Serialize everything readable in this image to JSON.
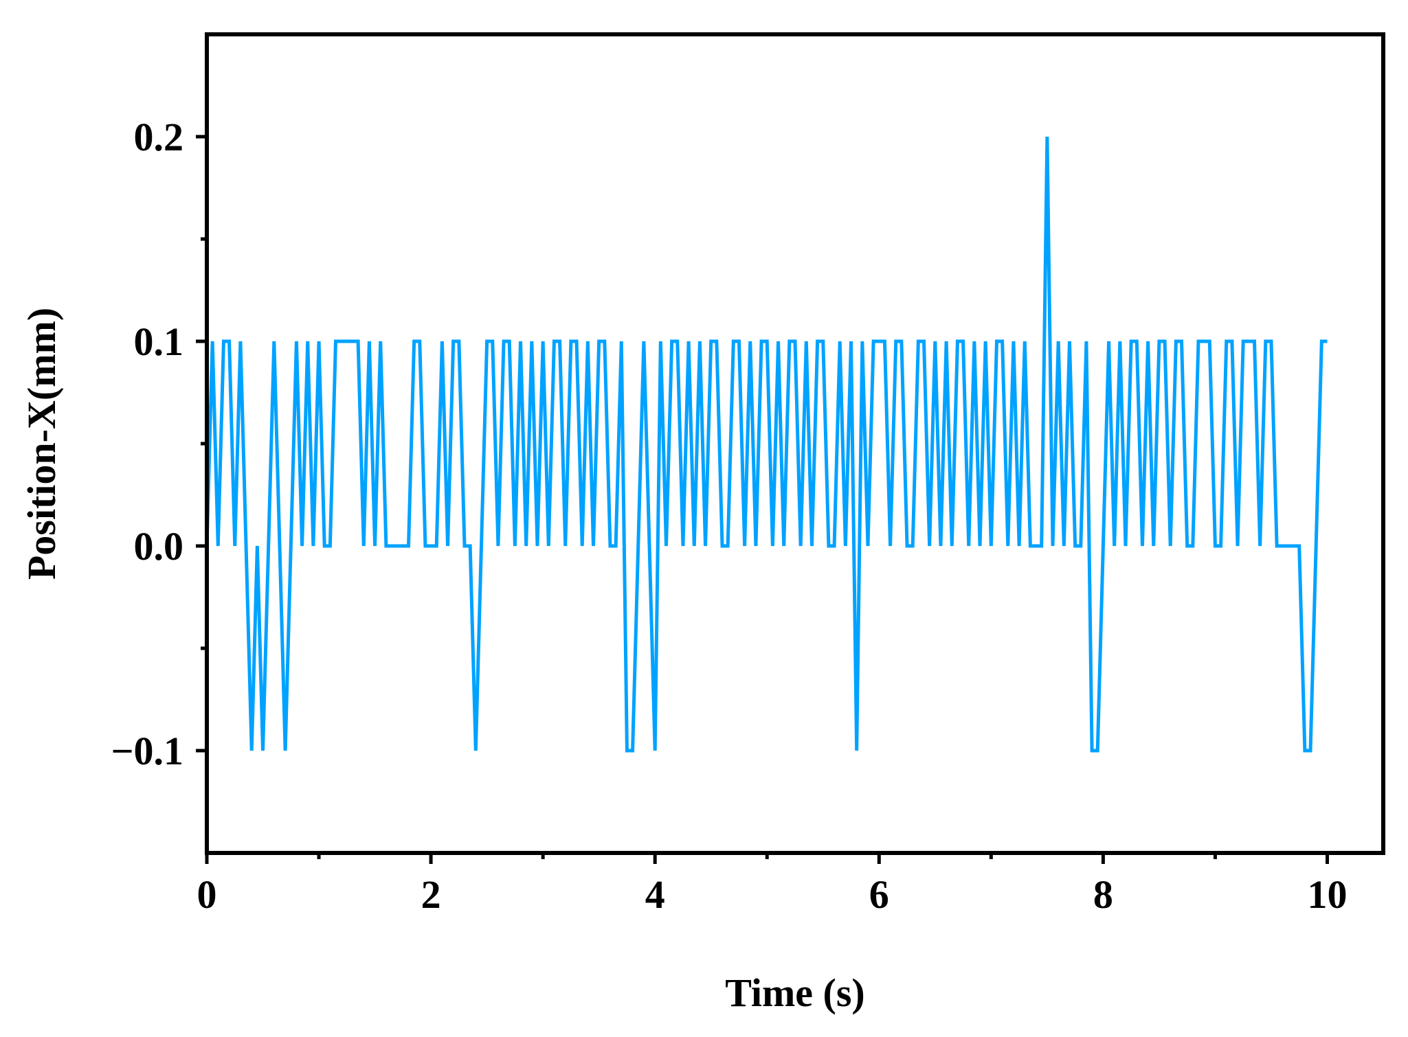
{
  "chart_data": {
    "type": "line",
    "x_label": "Time (s)",
    "y_label": "Position-X(mm)",
    "xlim": [
      0,
      10.5
    ],
    "ylim": [
      -0.15,
      0.25
    ],
    "xticks": [
      0,
      2,
      4,
      6,
      8,
      10
    ],
    "xminorticks": [
      1,
      3,
      5,
      7,
      9
    ],
    "yticks": [
      {
        "value": -0.1,
        "label": "−0.1"
      },
      {
        "value": 0,
        "label": "0.0"
      },
      0.1,
      0.2
    ],
    "yminorticks": [
      -0.05,
      0.05,
      0.15
    ],
    "x": [
      0,
      0.05,
      0.1,
      0.15,
      0.2,
      0.25,
      0.3,
      0.35,
      0.4,
      0.45,
      0.5,
      0.55,
      0.6,
      0.65,
      0.7,
      0.75,
      0.8,
      0.85,
      0.9,
      0.95,
      1,
      1.05,
      1.1,
      1.15,
      1.2,
      1.25,
      1.3,
      1.35,
      1.4,
      1.45,
      1.5,
      1.55,
      1.6,
      1.65,
      1.7,
      1.75,
      1.8,
      1.85,
      1.9,
      1.95,
      2,
      2.05,
      2.1,
      2.15,
      2.2,
      2.25,
      2.3,
      2.35,
      2.4,
      2.45,
      2.5,
      2.55,
      2.6,
      2.65,
      2.7,
      2.75,
      2.8,
      2.85,
      2.9,
      2.95,
      3,
      3.05,
      3.1,
      3.15,
      3.2,
      3.25,
      3.3,
      3.35,
      3.4,
      3.45,
      3.5,
      3.55,
      3.6,
      3.65,
      3.7,
      3.75,
      3.8,
      3.85,
      3.9,
      3.95,
      4,
      4.05,
      4.1,
      4.15,
      4.2,
      4.25,
      4.3,
      4.35,
      4.4,
      4.45,
      4.5,
      4.55,
      4.6,
      4.65,
      4.7,
      4.75,
      4.8,
      4.85,
      4.9,
      4.95,
      5,
      5.05,
      5.1,
      5.15,
      5.2,
      5.25,
      5.3,
      5.35,
      5.4,
      5.45,
      5.5,
      5.55,
      5.6,
      5.65,
      5.7,
      5.75,
      5.8,
      5.85,
      5.9,
      5.95,
      6,
      6.05,
      6.1,
      6.15,
      6.2,
      6.25,
      6.3,
      6.35,
      6.4,
      6.45,
      6.5,
      6.55,
      6.6,
      6.65,
      6.7,
      6.75,
      6.8,
      6.85,
      6.9,
      6.95,
      7,
      7.05,
      7.1,
      7.15,
      7.2,
      7.25,
      7.3,
      7.35,
      7.4,
      7.45,
      7.5,
      7.55,
      7.6,
      7.65,
      7.7,
      7.75,
      7.8,
      7.85,
      7.9,
      7.95,
      8,
      8.05,
      8.1,
      8.15,
      8.2,
      8.25,
      8.3,
      8.35,
      8.4,
      8.45,
      8.5,
      8.55,
      8.6,
      8.65,
      8.7,
      8.75,
      8.8,
      8.85,
      8.9,
      8.95,
      9,
      9.05,
      9.1,
      9.15,
      9.2,
      9.25,
      9.3,
      9.35,
      9.4,
      9.45,
      9.5,
      9.55,
      9.6,
      9.65,
      9.7,
      9.75,
      9.8,
      9.85,
      9.9,
      9.95,
      10
    ],
    "series": [
      {
        "color": "#00a2ff",
        "values": [
          0,
          0.1,
          0,
          0.1,
          0.1,
          0,
          0.1,
          0,
          -0.1,
          0,
          -0.1,
          0,
          0.1,
          0,
          -0.1,
          0,
          0.1,
          0,
          0.1,
          0,
          0.1,
          0,
          0,
          0.1,
          0.1,
          0.1,
          0.1,
          0.1,
          0,
          0.1,
          0,
          0.1,
          0,
          0,
          0,
          0,
          0,
          0.1,
          0.1,
          0,
          0,
          0,
          0.1,
          0,
          0.1,
          0.1,
          0,
          0,
          -0.1,
          0,
          0.1,
          0.1,
          0,
          0.1,
          0.1,
          0,
          0.1,
          0,
          0.1,
          0,
          0.1,
          0,
          0.1,
          0.1,
          0,
          0.1,
          0.1,
          0,
          0.1,
          0,
          0.1,
          0.1,
          0,
          0,
          0.1,
          -0.1,
          -0.1,
          0,
          0.1,
          0,
          -0.1,
          0.1,
          0,
          0.1,
          0.1,
          0,
          0.1,
          0,
          0.1,
          0,
          0.1,
          0.1,
          0,
          0,
          0.1,
          0.1,
          0,
          0.1,
          0,
          0.1,
          0.1,
          0,
          0.1,
          0,
          0.1,
          0.1,
          0,
          0.1,
          0,
          0.1,
          0.1,
          0,
          0,
          0.1,
          0,
          0.1,
          -0.1,
          0.1,
          0,
          0.1,
          0.1,
          0.1,
          0,
          0.1,
          0.1,
          0,
          0,
          0.1,
          0.1,
          0,
          0.1,
          0,
          0.1,
          0,
          0.1,
          0.1,
          0,
          0.1,
          0,
          0.1,
          0,
          0.1,
          0.1,
          0,
          0.1,
          0,
          0.1,
          0,
          0,
          0,
          0.2,
          0,
          0.1,
          0,
          0.1,
          0,
          0,
          0.1,
          -0.1,
          -0.1,
          0,
          0.1,
          0,
          0.1,
          0,
          0.1,
          0.1,
          0,
          0.1,
          0,
          0.1,
          0.1,
          0,
          0.1,
          0.1,
          0,
          0,
          0.1,
          0.1,
          0.1,
          0,
          0,
          0.1,
          0.1,
          0,
          0.1,
          0.1,
          0.1,
          0,
          0.1,
          0.1,
          0,
          0,
          0,
          0,
          0,
          -0.1,
          -0.1,
          0,
          0.1,
          0.1
        ]
      }
    ]
  }
}
